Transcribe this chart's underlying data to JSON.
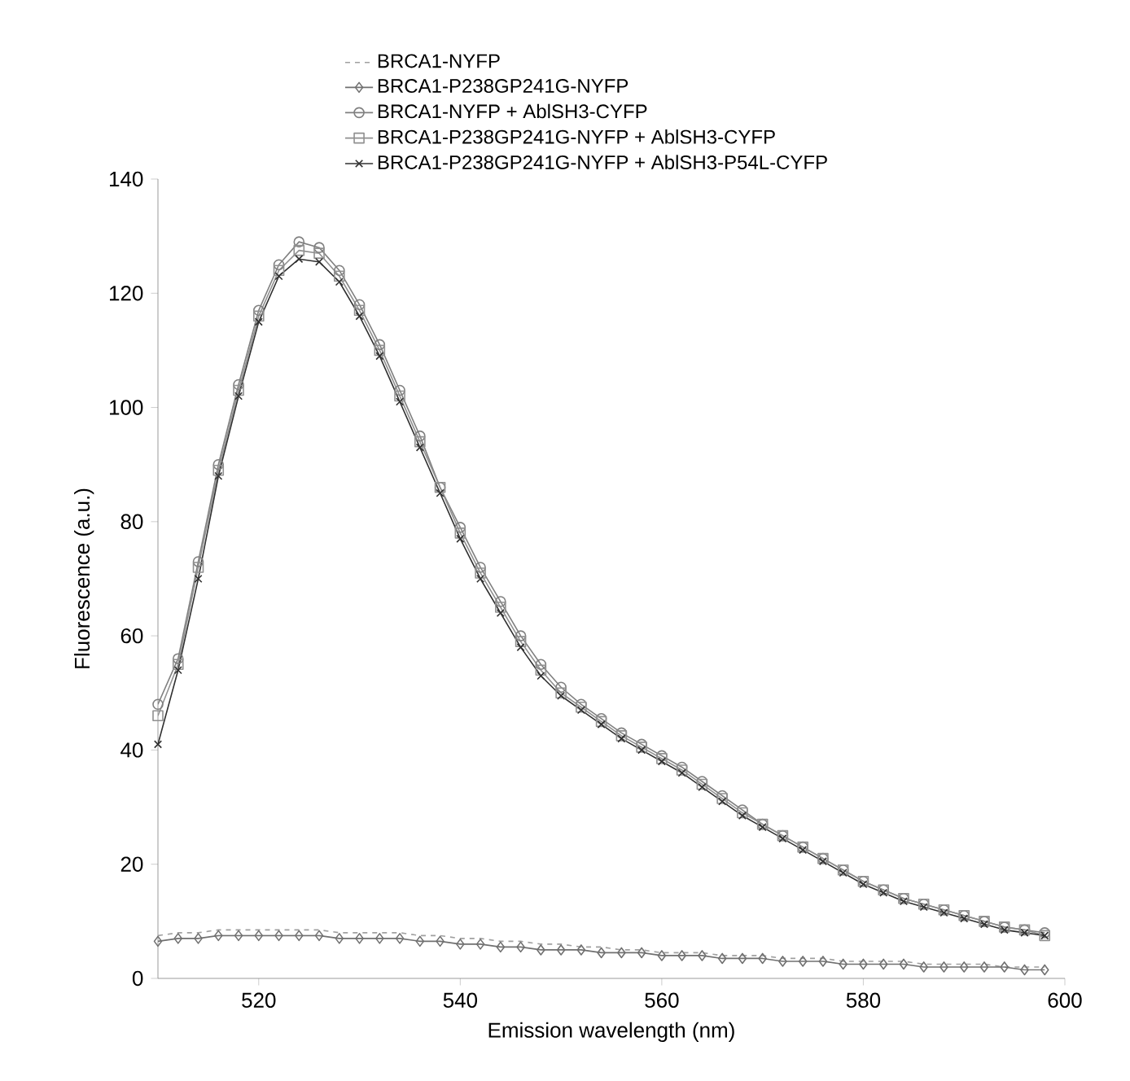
{
  "chart_data": {
    "type": "line",
    "xlabel": "Emission wavelength (nm)",
    "ylabel": "Fluorescence (a.u.)",
    "xlim": [
      510,
      600
    ],
    "xticks": [
      520,
      540,
      560,
      580,
      600
    ],
    "ylim": [
      0,
      140
    ],
    "yticks": [
      0,
      20,
      40,
      60,
      80,
      100,
      120,
      140
    ],
    "legend": "top",
    "grid": false,
    "x": [
      510,
      512,
      514,
      516,
      518,
      520,
      522,
      524,
      526,
      528,
      530,
      532,
      534,
      536,
      538,
      540,
      542,
      544,
      546,
      548,
      550,
      552,
      554,
      556,
      558,
      560,
      562,
      564,
      566,
      568,
      570,
      572,
      574,
      576,
      578,
      580,
      582,
      584,
      586,
      588,
      590,
      592,
      594,
      596,
      598
    ],
    "series": [
      {
        "name": "BRCA1-NYFP",
        "color": "#a0a0a0",
        "marker": "none",
        "line_style": "dashed",
        "values": [
          7.5,
          8,
          8,
          8.5,
          8.5,
          8.5,
          8.5,
          8.5,
          8.5,
          8,
          8,
          8,
          8,
          7.5,
          7.5,
          7,
          7,
          6.5,
          6.5,
          6,
          6,
          5.5,
          5.5,
          5,
          5,
          4.5,
          4.5,
          4.5,
          4,
          4,
          4,
          3.5,
          3.5,
          3.5,
          3,
          3,
          3,
          3,
          2.5,
          2.5,
          2.5,
          2.5,
          2,
          2,
          2
        ]
      },
      {
        "name": "BRCA1-P238GP241G-NYFP",
        "color": "#707070",
        "marker": "diamond",
        "line_style": "solid",
        "values": [
          6.5,
          7,
          7,
          7.5,
          7.5,
          7.5,
          7.5,
          7.5,
          7.5,
          7,
          7,
          7,
          7,
          6.5,
          6.5,
          6,
          6,
          5.5,
          5.5,
          5,
          5,
          5,
          4.5,
          4.5,
          4.5,
          4,
          4,
          4,
          3.5,
          3.5,
          3.5,
          3,
          3,
          3,
          2.5,
          2.5,
          2.5,
          2.5,
          2,
          2,
          2,
          2,
          2,
          1.5,
          1.5
        ]
      },
      {
        "name": "BRCA1-NYFP + AblSH3-CYFP",
        "color": "#808080",
        "marker": "circle",
        "line_style": "solid",
        "values": [
          48,
          56,
          73,
          90,
          104,
          117,
          125,
          129,
          128,
          124,
          118,
          111,
          103,
          95,
          86,
          79,
          72,
          66,
          60,
          55,
          51,
          48,
          45.5,
          43,
          41,
          39,
          37,
          34.5,
          32,
          29.5,
          27,
          25,
          23,
          21,
          19,
          17,
          15.5,
          14,
          13,
          12,
          11,
          10,
          9,
          8.5,
          8
        ]
      },
      {
        "name": "BRCA1-P238GP241G-NYFP + AblSH3-CYFP",
        "color": "#909090",
        "marker": "square",
        "line_style": "solid",
        "values": [
          46,
          55,
          72,
          89,
          103,
          116,
          124,
          127.5,
          127,
          123,
          117,
          110,
          102,
          94,
          86,
          78,
          71,
          65,
          59,
          54,
          50,
          47.5,
          45,
          42.5,
          40.5,
          38.5,
          36.5,
          34,
          31.5,
          29,
          27,
          25,
          23,
          21,
          19,
          17,
          15.5,
          14,
          13,
          12,
          11,
          10,
          9,
          8.5,
          7.5
        ]
      },
      {
        "name": "BRCA1-P238GP241G-NYFP + AblSH3-P54L-CYFP",
        "color": "#303030",
        "marker": "cross",
        "line_style": "solid",
        "values": [
          41,
          54,
          70,
          88,
          102,
          115,
          123,
          126,
          125.5,
          122,
          116,
          109,
          101,
          93,
          85,
          77,
          70,
          64,
          58,
          53,
          49.5,
          47,
          44.5,
          42,
          40,
          38,
          36,
          33.5,
          31,
          28.5,
          26.5,
          24.5,
          22.5,
          20.5,
          18.5,
          16.5,
          15,
          13.5,
          12.5,
          11.5,
          10.5,
          9.5,
          8.5,
          8,
          7.5
        ]
      }
    ]
  }
}
